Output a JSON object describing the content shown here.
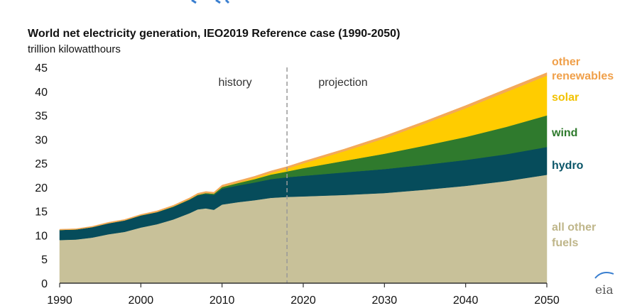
{
  "chart_data": {
    "type": "area",
    "stacked": true,
    "title": "World net electricity generation, IEO2019 Reference case  (1990-2050)",
    "ylabel": "trillion kilowatthours",
    "xlabel": "",
    "xlim": [
      1990,
      2050
    ],
    "ylim": [
      0,
      45
    ],
    "xticks": [
      "1990",
      "2000",
      "2010",
      "2020",
      "2030",
      "2040",
      "2050"
    ],
    "yticks": [
      "0",
      "5",
      "10",
      "15",
      "20",
      "25",
      "30",
      "35",
      "40",
      "45"
    ],
    "annotations": {
      "history": "history",
      "projection": "projection",
      "divider_year": 2018
    },
    "x": [
      1990,
      1992,
      1994,
      1996,
      1998,
      2000,
      2002,
      2004,
      2006,
      2007,
      2008,
      2009,
      2010,
      2012,
      2014,
      2016,
      2018,
      2020,
      2025,
      2030,
      2035,
      2040,
      2045,
      2050
    ],
    "series": [
      {
        "name": "all other fuels",
        "color": "#c8c199",
        "label_color": "#bfb68a",
        "values": [
          9.0,
          9.1,
          9.5,
          10.2,
          10.7,
          11.6,
          12.3,
          13.3,
          14.6,
          15.4,
          15.6,
          15.3,
          16.4,
          16.9,
          17.3,
          17.8,
          18.0,
          18.1,
          18.4,
          18.8,
          19.5,
          20.3,
          21.3,
          22.6
        ]
      },
      {
        "name": "hydro",
        "color": "#064c5b",
        "label_color": "#0a5568",
        "values": [
          2.1,
          2.1,
          2.2,
          2.3,
          2.4,
          2.5,
          2.5,
          2.6,
          2.8,
          2.9,
          3.0,
          3.1,
          3.3,
          3.5,
          3.7,
          3.9,
          4.1,
          4.3,
          4.7,
          5.0,
          5.2,
          5.4,
          5.6,
          5.8
        ]
      },
      {
        "name": "wind",
        "color": "#2f7a2d",
        "label_color": "#2e7a2c",
        "values": [
          0.0,
          0.0,
          0.0,
          0.0,
          0.0,
          0.05,
          0.05,
          0.1,
          0.1,
          0.15,
          0.2,
          0.25,
          0.35,
          0.5,
          0.7,
          0.95,
          1.2,
          1.6,
          2.4,
          3.2,
          4.0,
          4.8,
          5.7,
          6.6
        ]
      },
      {
        "name": "solar",
        "color": "#ffcc00",
        "label_color": "#f2c200",
        "values": [
          0.0,
          0.0,
          0.0,
          0.0,
          0.0,
          0.0,
          0.0,
          0.0,
          0.0,
          0.0,
          0.02,
          0.03,
          0.05,
          0.12,
          0.25,
          0.35,
          0.6,
          1.0,
          2.0,
          3.2,
          4.6,
          6.0,
          7.3,
          8.3
        ]
      },
      {
        "name": "other renewables",
        "color": "#f3a95a",
        "label_color": "#f0a04a",
        "values": [
          0.15,
          0.15,
          0.15,
          0.2,
          0.2,
          0.2,
          0.25,
          0.25,
          0.3,
          0.3,
          0.3,
          0.3,
          0.35,
          0.35,
          0.35,
          0.4,
          0.4,
          0.4,
          0.45,
          0.5,
          0.5,
          0.55,
          0.6,
          0.6
        ]
      }
    ],
    "legend": [
      {
        "lines": [
          "other",
          "renewables"
        ],
        "color": "#f0a04a"
      },
      {
        "lines": [
          "solar"
        ],
        "color": "#f2c200"
      },
      {
        "lines": [
          "wind"
        ],
        "color": "#2e7a2c"
      },
      {
        "lines": [
          "hydro"
        ],
        "color": "#0a5568"
      },
      {
        "lines": [
          "all other",
          "fuels"
        ],
        "color": "#bfb68a"
      }
    ]
  },
  "source_logo": "eia"
}
